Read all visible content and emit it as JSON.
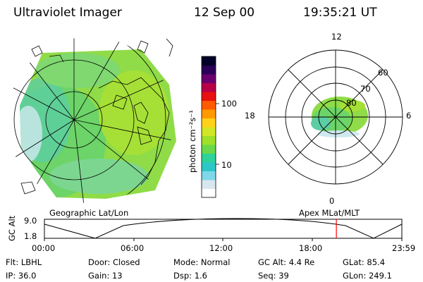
{
  "header": {
    "instrument": "Ultraviolet Imager",
    "date": "12 Sep 00",
    "time": "19:35:21 UT"
  },
  "colorbar": {
    "unit_label": "photon cm⁻²s⁻¹",
    "ticks": [
      "100",
      "10"
    ],
    "colors": [
      "#ffffff",
      "#d8e6f0",
      "#7fd8e8",
      "#2ec7c7",
      "#2fd29a",
      "#6ad84a",
      "#9ee02a",
      "#d0e626",
      "#ffd21a",
      "#ff9a00",
      "#ff5a00",
      "#e81010",
      "#b80048",
      "#6a0070",
      "#2a0058",
      "#000028"
    ]
  },
  "geo_panel": {
    "label": "Geographic Lat/Lon"
  },
  "polar_panel": {
    "label": "Apex  MLat/MLT",
    "mlt_labels": {
      "top": "12",
      "left": "18",
      "right": "6",
      "bottom": "0"
    },
    "lat_labels": [
      "60",
      "70",
      "80"
    ]
  },
  "altitude_panel": {
    "ylabel": "GC Alt",
    "yticks": [
      "9.0",
      "1.8"
    ],
    "xticks": [
      "00:00",
      "06:00",
      "12:00",
      "18:00",
      "23:59"
    ],
    "current_time_marker": "19:35:21",
    "marker_color": "#ff0000"
  },
  "info": {
    "flt_label": "Flt:",
    "flt_value": "LBHL",
    "door_label": "Door:",
    "door_value": "Closed",
    "mode_label": "Mode:",
    "mode_value": "Normal",
    "gcalt_label": "GC Alt:",
    "gcalt_value": "4.4 Re",
    "glat_label": "GLat:",
    "glat_value": "85.4",
    "ip_label": "IP:",
    "ip_value": "36.0",
    "gain_label": "Gain:",
    "gain_value": "13",
    "dsp_label": "Dsp:",
    "dsp_value": "1.6",
    "seq_label": "Seq:",
    "seq_value": "39",
    "glon_label": "GLon:",
    "glon_value": "249.1"
  }
}
